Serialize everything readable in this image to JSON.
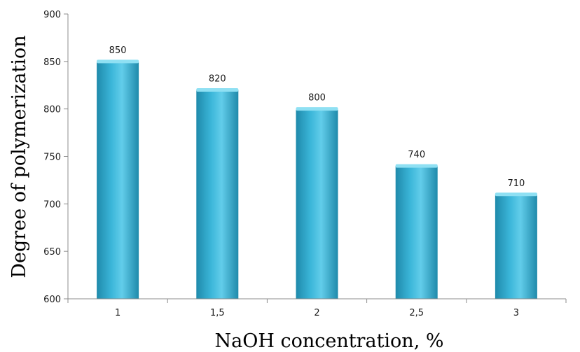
{
  "chart_data": {
    "type": "bar",
    "categories": [
      "1",
      "1,5",
      "2",
      "2,5",
      "3"
    ],
    "values": [
      850,
      820,
      800,
      740,
      710
    ],
    "data_labels": [
      "850",
      "820",
      "800",
      "740",
      "710"
    ],
    "title": "",
    "xlabel": "NaOH concentration, %",
    "ylabel": "Degree of polymerization",
    "ylim": [
      600,
      900
    ],
    "yticks": [
      "600",
      "650",
      "700",
      "750",
      "800",
      "850",
      "900"
    ],
    "grid": false,
    "legend": "none",
    "colors": {
      "bar_face": "#3bb6d9",
      "bar_face_light": "#62cdea",
      "bar_face_dark": "#1f8aab",
      "bar_top": "#8fe0f3",
      "axis": "#8c8c8c"
    }
  }
}
